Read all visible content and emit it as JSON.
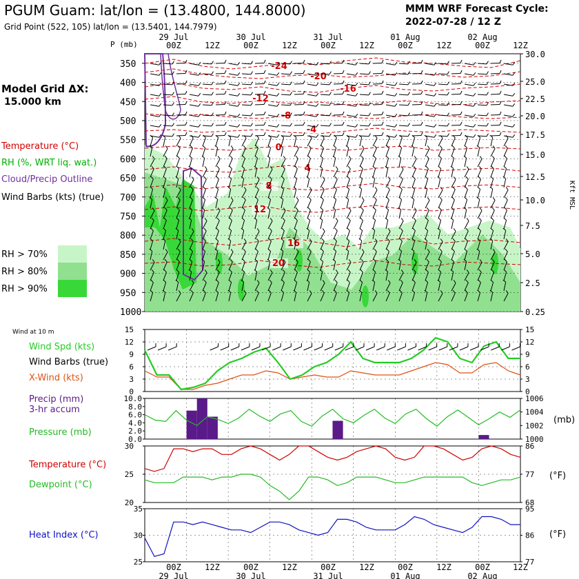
{
  "header": {
    "title": "PGUM Guam:  lat/lon = (13.4800, 144.8000)",
    "subtitle": "Grid Point (522, 105) lat/lon = (13.5401, 144.7979)",
    "cycle_label": "MMM WRF Forecast Cycle:",
    "cycle_value": "2022-07-28 / 12  Z"
  },
  "left_panel": {
    "model_grid_label": "Model Grid ΔX:",
    "model_grid_value": "15.000 km",
    "legend": [
      {
        "text": "Temperature (°C)",
        "color": "#d00000"
      },
      {
        "text": "RH (%, WRT liq. wat.)",
        "color": "#00b000"
      },
      {
        "text": "Cloud/Precip Outline",
        "color": "#7030a0"
      },
      {
        "text": "Wind Barbs (kts) (true)",
        "color": "#000000"
      }
    ],
    "rh_legend": [
      {
        "text": "RH > 70%",
        "color": "#c8f5c8"
      },
      {
        "text": "RH > 80%",
        "color": "#90e090"
      },
      {
        "text": "RH > 90%",
        "color": "#38d838"
      }
    ]
  },
  "time_axis": {
    "hour_labels": [
      "00Z",
      "12Z",
      "00Z",
      "12Z",
      "00Z",
      "12Z",
      "00Z",
      "12Z",
      "00Z",
      "12Z"
    ],
    "date_labels": [
      "29 Jul",
      "30 Jul",
      "31 Jul",
      "01 Aug",
      "02 Aug"
    ]
  },
  "colors": {
    "temperature": "#d00000",
    "rh": "#22c022",
    "cloud": "#7030a0",
    "wind_speed": "#22cc22",
    "x_wind": "#e05010",
    "precip": "#5a1a8a",
    "pressure": "#22bb22",
    "dewpoint": "#22bb22",
    "heat_index": "#1010c0"
  },
  "chart_data": [
    {
      "type": "heatmap",
      "name": "cross-section",
      "ylabel": "P (mb)",
      "y_tick_labels": [
        "350",
        "400",
        "450",
        "500",
        "550",
        "600",
        "650",
        "700",
        "750",
        "800",
        "850",
        "900",
        "950",
        "1000"
      ],
      "right_axis_label": "Kft MSL",
      "right_tick_labels": [
        "30.0",
        "25.0",
        "22.5",
        "20.0",
        "17.5",
        "15.0",
        "12.5",
        "10.0",
        "7.5",
        "5.0",
        "2.5",
        "0.25"
      ],
      "temperature_contour_labels": [
        "-24",
        "-20",
        "-16",
        "-12",
        "-8",
        "-4",
        "0",
        "4",
        "8",
        "12",
        "16",
        "20"
      ],
      "wind_barb_legend": "Wind Barbs (kts) (true)"
    },
    {
      "type": "line",
      "name": "wind",
      "corner_label": "Wind at 10 m",
      "y_tick_labels": [
        "0",
        "3",
        "6",
        "9",
        "12",
        "15"
      ],
      "ylim": [
        0,
        15
      ],
      "series": [
        {
          "name": "Wind Spd (kts)",
          "values": [
            10,
            4,
            4,
            0.5,
            1,
            2,
            5,
            7,
            8,
            9.5,
            10.5,
            7,
            3,
            4,
            6,
            7,
            9,
            12,
            8,
            7,
            7,
            7,
            8,
            10,
            13,
            12,
            8,
            7,
            11,
            12,
            8,
            8
          ]
        },
        {
          "name": "Wind Barbs (true)",
          "values": []
        },
        {
          "name": "X-Wind (kts)",
          "values": [
            5,
            3.5,
            3.5,
            0.5,
            0.5,
            1.5,
            2,
            3,
            4,
            4,
            5,
            4.5,
            3,
            3.5,
            4,
            3.5,
            3.5,
            5,
            4.5,
            4,
            4,
            4,
            5,
            6,
            7,
            6.5,
            4.5,
            4.5,
            6.5,
            7,
            5,
            4
          ]
        }
      ]
    },
    {
      "type": "bar",
      "name": "precip-pressure",
      "y_tick_labels": [
        "0.0",
        "2.0",
        "4.0",
        "6.0",
        "8.0",
        "10.0"
      ],
      "ylim": [
        0,
        10
      ],
      "right_tick_labels": [
        "1000",
        "1002",
        "1004",
        "1006"
      ],
      "right_ylim": [
        1000,
        1006
      ],
      "right_unit": "(mb)",
      "series": [
        {
          "name": "Precip (mm)",
          "subtitle": "3-hr accum",
          "values": [
            0,
            0,
            0,
            0,
            7,
            10,
            5.5,
            0,
            0,
            0,
            0,
            0,
            0,
            0,
            0,
            0,
            0,
            0,
            4.5,
            0,
            0,
            0,
            0,
            0,
            0,
            0,
            0,
            0,
            0,
            0,
            0,
            0,
            1,
            0,
            0,
            0
          ]
        },
        {
          "name": "Pressure (mb)",
          "values": [
            1003.6,
            1002.8,
            1002.6,
            1004.2,
            1002.8,
            1002.0,
            1003.3,
            1002.9,
            1002.3,
            1003.1,
            1004.4,
            1003.4,
            1002.6,
            1003.7,
            1004.2,
            1002.6,
            1001.9,
            1003.4,
            1004.4,
            1003.0,
            1002.4,
            1003.5,
            1004.4,
            1003.1,
            1002.3,
            1003.7,
            1004.4,
            1003.0,
            1001.9,
            1003.3,
            1004.3,
            1003.2,
            1002.1,
            1003.0,
            1004.0,
            1003.2,
            1004.3
          ]
        }
      ]
    },
    {
      "type": "line",
      "name": "temp-dewpoint",
      "y_tick_labels": [
        "20",
        "25",
        "30"
      ],
      "ylim": [
        20,
        30
      ],
      "right_tick_labels": [
        "68",
        "77",
        "86"
      ],
      "right_unit": "(°F)",
      "series": [
        {
          "name": "Temperature (°C)",
          "values": [
            26,
            25.5,
            26,
            29.5,
            29.5,
            29,
            29.5,
            29.5,
            28.5,
            28.5,
            29.5,
            30,
            29.5,
            28.5,
            27.5,
            28.5,
            30,
            30,
            29,
            28,
            27.5,
            28,
            29,
            29.5,
            30,
            29.5,
            28,
            27.5,
            28,
            30,
            30,
            29.5,
            28.5,
            27.5,
            28,
            29.5,
            30,
            29.5,
            28.5,
            28
          ]
        },
        {
          "name": "Dewpoint (°C)",
          "values": [
            24,
            23.5,
            23.5,
            23.5,
            24.5,
            24.5,
            24.5,
            24,
            24.5,
            24.5,
            25,
            25,
            24.5,
            23,
            22,
            20.5,
            22,
            24.5,
            24.5,
            24,
            23,
            23.5,
            24.5,
            24.5,
            24.5,
            24,
            23.5,
            23.5,
            24,
            24.5,
            24.5,
            24.5,
            24.5,
            24.5,
            23.5,
            23,
            23.5,
            24,
            24,
            24.5
          ]
        }
      ]
    },
    {
      "type": "line",
      "name": "heat-index",
      "y_tick_labels": [
        "25",
        "30",
        "35"
      ],
      "ylim": [
        25,
        35
      ],
      "right_tick_labels": [
        "77",
        "86",
        "95"
      ],
      "right_unit": "(°F)",
      "series": [
        {
          "name": "Heat Index (°C)",
          "values": [
            29.5,
            26,
            26.5,
            32.5,
            32.5,
            32,
            32.5,
            32,
            31.5,
            31,
            31,
            30.5,
            31.5,
            32.5,
            32.5,
            32,
            31,
            30.5,
            30,
            30.5,
            33,
            33,
            32.5,
            31.5,
            31,
            31,
            31,
            32,
            33.5,
            33,
            32,
            31.5,
            31,
            30.5,
            31.5,
            33.5,
            33.5,
            33,
            32,
            32
          ]
        }
      ]
    }
  ]
}
